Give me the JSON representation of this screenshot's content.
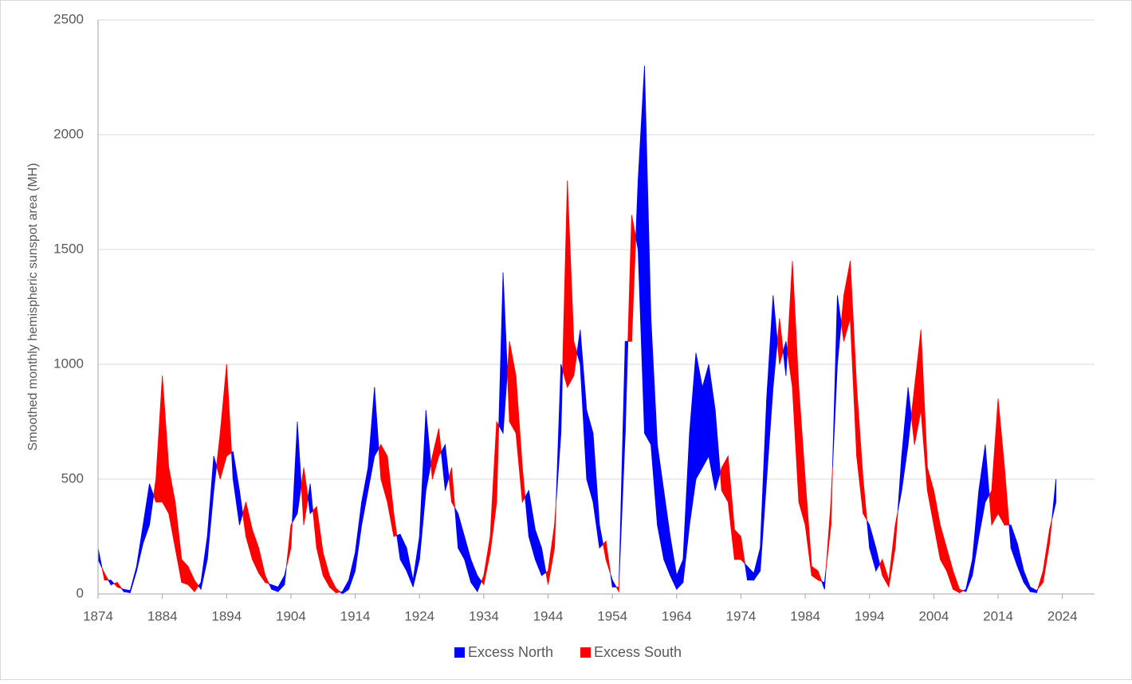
{
  "chart_data": {
    "type": "area-difference",
    "y_label": "Smoothed monthly hemispheric sunspot area (MH)",
    "x": [
      1874,
      1875,
      1876,
      1877,
      1878,
      1879,
      1880,
      1881,
      1882,
      1883,
      1884,
      1885,
      1886,
      1887,
      1888,
      1889,
      1890,
      1891,
      1892,
      1893,
      1894,
      1895,
      1896,
      1897,
      1898,
      1899,
      1900,
      1901,
      1902,
      1903,
      1904,
      1905,
      1906,
      1907,
      1908,
      1909,
      1910,
      1911,
      1912,
      1913,
      1914,
      1915,
      1916,
      1917,
      1918,
      1919,
      1920,
      1921,
      1922,
      1923,
      1924,
      1925,
      1926,
      1927,
      1928,
      1929,
      1930,
      1931,
      1932,
      1933,
      1934,
      1935,
      1936,
      1937,
      1938,
      1939,
      1940,
      1941,
      1942,
      1943,
      1944,
      1945,
      1946,
      1947,
      1948,
      1949,
      1950,
      1951,
      1952,
      1953,
      1954,
      1955,
      1956,
      1957,
      1958,
      1959,
      1960,
      1961,
      1962,
      1963,
      1964,
      1965,
      1966,
      1967,
      1968,
      1969,
      1970,
      1971,
      1972,
      1973,
      1974,
      1975,
      1976,
      1977,
      1978,
      1979,
      1980,
      1981,
      1982,
      1983,
      1984,
      1985,
      1986,
      1987,
      1988,
      1989,
      1990,
      1991,
      1992,
      1993,
      1994,
      1995,
      1996,
      1997,
      1998,
      1999,
      2000,
      2001,
      2002,
      2003,
      2004,
      2005,
      2006,
      2007,
      2008,
      2009,
      2010,
      2011,
      2012,
      2013,
      2014,
      2015,
      2016,
      2017,
      2018,
      2019,
      2020,
      2021,
      2022,
      2023
    ],
    "series": [
      {
        "name": "Excess North",
        "color": "#0000ff",
        "values": [
          200,
          60,
          60,
          30,
          20,
          15,
          120,
          300,
          480,
          400,
          400,
          350,
          200,
          50,
          40,
          10,
          50,
          250,
          600,
          500,
          600,
          620,
          450,
          250,
          150,
          90,
          50,
          40,
          30,
          80,
          200,
          750,
          300,
          480,
          200,
          80,
          30,
          5,
          10,
          60,
          180,
          400,
          550,
          900,
          500,
          400,
          250,
          260,
          200,
          60,
          250,
          800,
          500,
          600,
          650,
          400,
          350,
          250,
          150,
          80,
          40,
          180,
          400,
          1400,
          750,
          700,
          400,
          450,
          280,
          200,
          40,
          200,
          1000,
          900,
          950,
          1150,
          800,
          700,
          300,
          150,
          60,
          10,
          1100,
          1100,
          1800,
          2300,
          1200,
          650,
          450,
          250,
          80,
          150,
          700,
          1050,
          900,
          1000,
          800,
          450,
          400,
          150,
          150,
          120,
          90,
          200,
          850,
          1300,
          1000,
          1100,
          900,
          400,
          300,
          80,
          60,
          50,
          300,
          1300,
          1100,
          1200,
          600,
          350,
          300,
          200,
          80,
          30,
          200,
          600,
          900,
          650,
          800,
          450,
          300,
          150,
          100,
          20,
          5,
          20,
          150,
          450,
          650,
          300,
          350,
          300,
          300,
          220,
          100,
          30,
          15,
          50,
          220,
          500
        ]
      },
      {
        "name": "Excess South",
        "color": "#ff0000",
        "values": [
          150,
          90,
          40,
          50,
          10,
          5,
          100,
          220,
          300,
          500,
          950,
          550,
          400,
          150,
          120,
          60,
          20,
          150,
          450,
          700,
          1000,
          500,
          300,
          400,
          280,
          200,
          80,
          20,
          10,
          40,
          300,
          350,
          550,
          350,
          380,
          180,
          80,
          25,
          0,
          20,
          100,
          300,
          450,
          600,
          650,
          600,
          350,
          150,
          100,
          30,
          150,
          450,
          600,
          720,
          450,
          550,
          200,
          150,
          50,
          10,
          80,
          250,
          750,
          700,
          1100,
          950,
          550,
          250,
          150,
          80,
          100,
          300,
          700,
          1800,
          1100,
          1000,
          500,
          400,
          200,
          230,
          30,
          30,
          700,
          1650,
          1500,
          700,
          650,
          300,
          150,
          80,
          20,
          50,
          300,
          500,
          550,
          600,
          450,
          550,
          600,
          280,
          250,
          60,
          60,
          100,
          500,
          900,
          1200,
          950,
          1450,
          900,
          500,
          120,
          100,
          20,
          400,
          1000,
          1300,
          1450,
          900,
          500,
          200,
          100,
          150,
          60,
          300,
          450,
          650,
          900,
          1150,
          550,
          450,
          300,
          200,
          100,
          20,
          10,
          80,
          250,
          400,
          450,
          850,
          550,
          200,
          120,
          50,
          10,
          5,
          100,
          280,
          400
        ]
      }
    ],
    "xlim": [
      1874,
      2029
    ],
    "xticks": [
      1874,
      1884,
      1894,
      1904,
      1914,
      1924,
      1934,
      1944,
      1954,
      1964,
      1974,
      1984,
      1994,
      2004,
      2014,
      2024
    ],
    "ylim": [
      0,
      2500
    ],
    "yticks": [
      0,
      500,
      1000,
      1500,
      2000,
      2500
    ],
    "grid": true,
    "legend": "bottom"
  }
}
